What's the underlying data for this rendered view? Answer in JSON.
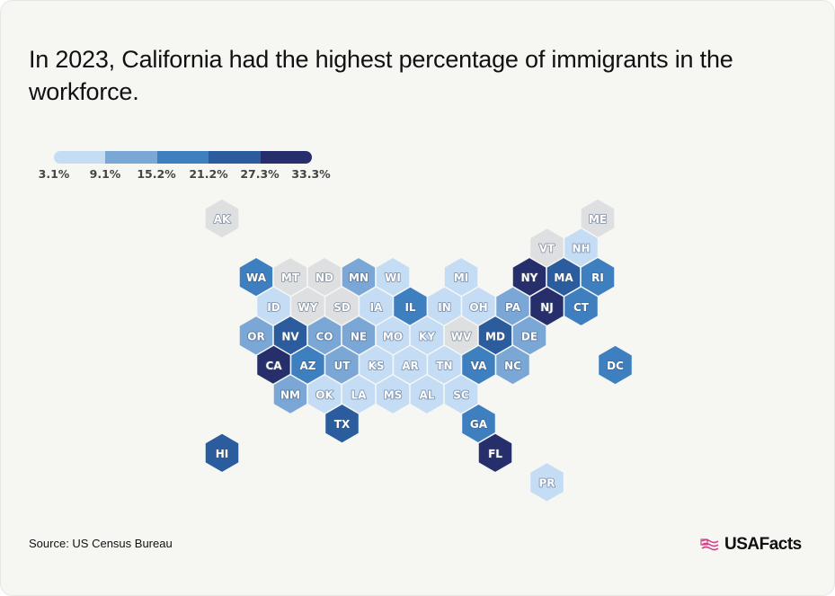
{
  "title": "In 2023, California had the highest percentage of immigrants in the workforce.",
  "legend": {
    "labels": [
      "3.1%",
      "9.1%",
      "15.2%",
      "21.2%",
      "27.3%",
      "33.3%"
    ],
    "colors": [
      "#c5dcf5",
      "#7ba7d6",
      "#3e7fc0",
      "#2a5c9e",
      "#262f6b"
    ]
  },
  "source": "Source: US Census Bureau",
  "brand": "USAFacts",
  "map_data": {
    "type": "hex-tile-map",
    "no_data_color": "#dedfe1",
    "states": [
      {
        "abbr": "AK",
        "row": 0,
        "col": 0,
        "level": -1
      },
      {
        "abbr": "ME",
        "row": 0,
        "col": 11,
        "level": -1
      },
      {
        "abbr": "VT",
        "row": 1,
        "col": 9,
        "level": -1
      },
      {
        "abbr": "NH",
        "row": 1,
        "col": 10,
        "level": 0
      },
      {
        "abbr": "WA",
        "row": 2,
        "col": 1,
        "level": 2
      },
      {
        "abbr": "MT",
        "row": 2,
        "col": 2,
        "level": -1
      },
      {
        "abbr": "ND",
        "row": 2,
        "col": 3,
        "level": -1
      },
      {
        "abbr": "MN",
        "row": 2,
        "col": 4,
        "level": 1
      },
      {
        "abbr": "WI",
        "row": 2,
        "col": 5,
        "level": 0
      },
      {
        "abbr": "MI",
        "row": 2,
        "col": 7,
        "level": 0
      },
      {
        "abbr": "NY",
        "row": 2,
        "col": 9,
        "level": 4
      },
      {
        "abbr": "MA",
        "row": 2,
        "col": 10,
        "level": 3
      },
      {
        "abbr": "RI",
        "row": 2,
        "col": 11,
        "level": 2
      },
      {
        "abbr": "ID",
        "row": 3,
        "col": 1,
        "level": 0
      },
      {
        "abbr": "WY",
        "row": 3,
        "col": 2,
        "level": -1
      },
      {
        "abbr": "SD",
        "row": 3,
        "col": 3,
        "level": -1
      },
      {
        "abbr": "IA",
        "row": 3,
        "col": 4,
        "level": 0
      },
      {
        "abbr": "IL",
        "row": 3,
        "col": 5,
        "level": 2
      },
      {
        "abbr": "IN",
        "row": 3,
        "col": 6,
        "level": 0
      },
      {
        "abbr": "OH",
        "row": 3,
        "col": 7,
        "level": 0
      },
      {
        "abbr": "PA",
        "row": 3,
        "col": 8,
        "level": 1
      },
      {
        "abbr": "NJ",
        "row": 3,
        "col": 9,
        "level": 4
      },
      {
        "abbr": "CT",
        "row": 3,
        "col": 10,
        "level": 2
      },
      {
        "abbr": "OR",
        "row": 4,
        "col": 1,
        "level": 1
      },
      {
        "abbr": "NV",
        "row": 4,
        "col": 2,
        "level": 3
      },
      {
        "abbr": "CO",
        "row": 4,
        "col": 3,
        "level": 1
      },
      {
        "abbr": "NE",
        "row": 4,
        "col": 4,
        "level": 1
      },
      {
        "abbr": "MO",
        "row": 4,
        "col": 5,
        "level": 0
      },
      {
        "abbr": "KY",
        "row": 4,
        "col": 6,
        "level": 0
      },
      {
        "abbr": "WV",
        "row": 4,
        "col": 7,
        "level": -1
      },
      {
        "abbr": "MD",
        "row": 4,
        "col": 8,
        "level": 3
      },
      {
        "abbr": "DE",
        "row": 4,
        "col": 9,
        "level": 1
      },
      {
        "abbr": "CA",
        "row": 5,
        "col": 1,
        "level": 4
      },
      {
        "abbr": "AZ",
        "row": 5,
        "col": 2,
        "level": 2
      },
      {
        "abbr": "UT",
        "row": 5,
        "col": 3,
        "level": 1
      },
      {
        "abbr": "KS",
        "row": 5,
        "col": 4,
        "level": 0
      },
      {
        "abbr": "AR",
        "row": 5,
        "col": 5,
        "level": 0
      },
      {
        "abbr": "TN",
        "row": 5,
        "col": 6,
        "level": 0
      },
      {
        "abbr": "VA",
        "row": 5,
        "col": 7,
        "level": 2
      },
      {
        "abbr": "NC",
        "row": 5,
        "col": 8,
        "level": 1
      },
      {
        "abbr": "DC",
        "row": 5,
        "col": 11,
        "level": 2
      },
      {
        "abbr": "NM",
        "row": 6,
        "col": 2,
        "level": 1
      },
      {
        "abbr": "OK",
        "row": 6,
        "col": 3,
        "level": 0
      },
      {
        "abbr": "LA",
        "row": 6,
        "col": 4,
        "level": 0
      },
      {
        "abbr": "MS",
        "row": 6,
        "col": 5,
        "level": 0
      },
      {
        "abbr": "AL",
        "row": 6,
        "col": 6,
        "level": 0
      },
      {
        "abbr": "SC",
        "row": 6,
        "col": 7,
        "level": 0
      },
      {
        "abbr": "TX",
        "row": 7,
        "col": 3,
        "level": 3
      },
      {
        "abbr": "GA",
        "row": 7,
        "col": 7,
        "level": 2
      },
      {
        "abbr": "HI",
        "row": 8,
        "col": 0,
        "level": 3
      },
      {
        "abbr": "FL",
        "row": 8,
        "col": 8,
        "level": 4
      },
      {
        "abbr": "PR",
        "row": 9,
        "col": 9,
        "level": 0
      }
    ]
  }
}
